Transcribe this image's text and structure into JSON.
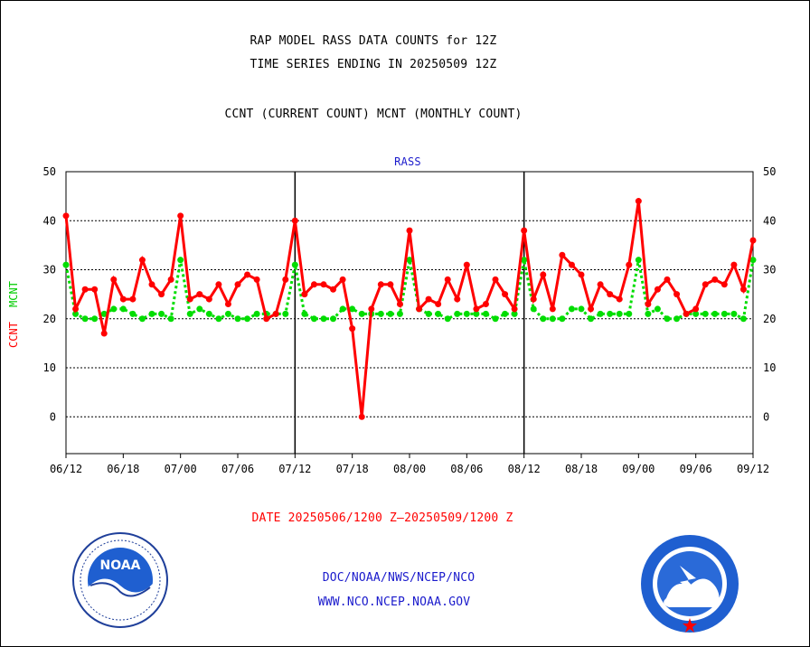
{
  "title_line1": "RAP MODEL RASS DATA COUNTS for 12Z",
  "title_line2": "TIME SERIES ENDING IN 20250509 12Z",
  "subtitle": "CCNT (CURRENT COUNT) MCNT (MONTHLY COUNT)",
  "panel_label": "RASS",
  "ylabel_ccnt": "CCNT",
  "ylabel_mcnt": "MCNT",
  "date_range": "DATE 20250506/1200 Z—20250509/1200 Z",
  "footer_line1": "DOC/NOAA/NWS/NCEP/NCO",
  "footer_line2": "WWW.NCO.NCEP.NOAA.GOV",
  "logo_left": "NOAA",
  "logo_right": "NATIONAL WEATHER SERVICE",
  "colors": {
    "ccnt": "#ff0000",
    "mcnt": "#00dd00",
    "footer": "#1a1acc",
    "date": "#ff0000"
  },
  "chart_data": {
    "type": "line",
    "title": "RAP MODEL RASS DATA COUNTS for 12Z",
    "x_tick_labels": [
      "06/12",
      "06/18",
      "07/00",
      "07/06",
      "07/12",
      "07/18",
      "08/00",
      "08/06",
      "08/12",
      "08/18",
      "09/00",
      "09/06",
      "09/12"
    ],
    "x_hours": [
      0,
      6,
      12,
      18,
      24,
      30,
      36,
      42,
      48,
      54,
      60,
      66,
      72
    ],
    "x_range_hours": [
      0,
      72
    ],
    "y_ticks": [
      0,
      10,
      20,
      30,
      40,
      50
    ],
    "ylim": [
      -7.5,
      50
    ],
    "grid": "horizontal dotted at each y tick; vertical solid at day boundaries (07/12, 08/12)",
    "x": [
      0,
      1,
      2,
      3,
      4,
      5,
      6,
      7,
      8,
      9,
      10,
      11,
      12,
      13,
      14,
      15,
      16,
      17,
      18,
      19,
      20,
      21,
      22,
      23,
      24,
      25,
      26,
      27,
      28,
      29,
      30,
      31,
      32,
      33,
      34,
      35,
      36,
      37,
      38,
      39,
      40,
      41,
      42,
      43,
      44,
      45,
      46,
      47,
      48,
      49,
      50,
      51,
      52,
      53,
      54,
      55,
      56,
      57,
      58,
      59,
      60,
      61,
      62,
      63,
      64,
      65,
      66,
      67,
      68,
      69,
      70,
      71,
      72
    ],
    "series": [
      {
        "name": "CCNT",
        "values": [
          41,
          22,
          26,
          26,
          17,
          28,
          24,
          24,
          32,
          27,
          25,
          28,
          41,
          24,
          25,
          24,
          27,
          23,
          27,
          29,
          28,
          20,
          21,
          28,
          40,
          25,
          27,
          27,
          26,
          28,
          18,
          0,
          22,
          27,
          27,
          23,
          38,
          22,
          24,
          23,
          28,
          24,
          31,
          22,
          23,
          28,
          25,
          22,
          38,
          24,
          29,
          22,
          33,
          31,
          29,
          22,
          27,
          25,
          24,
          31,
          44,
          23,
          26,
          28,
          25,
          21,
          22,
          27,
          28,
          27,
          31,
          26,
          36
        ]
      },
      {
        "name": "MCNT",
        "values": [
          31,
          21,
          20,
          20,
          21,
          22,
          22,
          21,
          20,
          21,
          21,
          20,
          32,
          21,
          22,
          21,
          20,
          21,
          20,
          20,
          21,
          21,
          21,
          21,
          31,
          21,
          20,
          20,
          20,
          22,
          22,
          21,
          21,
          21,
          21,
          21,
          32,
          22,
          21,
          21,
          20,
          21,
          21,
          21,
          21,
          20,
          21,
          21,
          32,
          22,
          20,
          20,
          20,
          22,
          22,
          20,
          21,
          21,
          21,
          21,
          32,
          21,
          22,
          20,
          20,
          21,
          21,
          21,
          21,
          21,
          21,
          20,
          32
        ]
      }
    ]
  }
}
